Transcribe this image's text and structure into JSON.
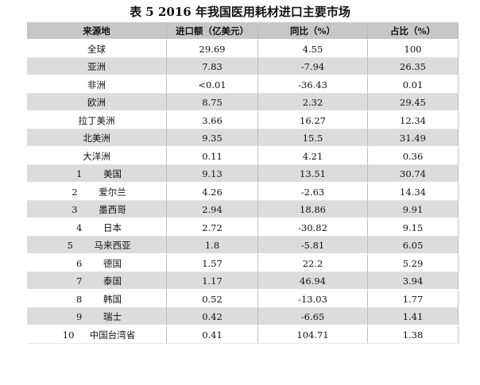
{
  "title": "表 5 2016 年我国医用耗材进口主要市场",
  "headers": [
    "来源地",
    "进口额（亿美元）",
    "同比（%）",
    "占比（%）"
  ],
  "regions": [
    {
      "name": "全球",
      "amount": "29.69",
      "yoy": "4.55",
      "share": "100"
    },
    {
      "name": "亚洲",
      "amount": "7.83",
      "yoy": "-7.94",
      "share": "26.35"
    },
    {
      "name": "非洲",
      "amount": "<0.01",
      "yoy": "-36.43",
      "share": "0.01"
    },
    {
      "name": "欧洲",
      "amount": "8.75",
      "yoy": "2.32",
      "share": "29.45"
    },
    {
      "name": "拉丁美洲",
      "amount": "3.66",
      "yoy": "16.27",
      "share": "12.34"
    },
    {
      "name": "北美洲",
      "amount": "9.35",
      "yoy": "15.5",
      "share": "31.49"
    },
    {
      "name": "大洋洲",
      "amount": "0.11",
      "yoy": "4.21",
      "share": "0.36"
    }
  ],
  "countries": [
    {
      "rank": "1",
      "name": "美国",
      "amount": "9.13",
      "yoy": "13.51",
      "share": "30.74"
    },
    {
      "rank": "2",
      "name": "爱尔兰",
      "amount": "4.26",
      "yoy": "-2.63",
      "share": "14.34"
    },
    {
      "rank": "3",
      "name": "墨西哥",
      "amount": "2.94",
      "yoy": "18.86",
      "share": "9.91"
    },
    {
      "rank": "4",
      "name": "日本",
      "amount": "2.72",
      "yoy": "-30.82",
      "share": "9.15"
    },
    {
      "rank": "5",
      "name": "马来西亚",
      "amount": "1.8",
      "yoy": "-5.81",
      "share": "6.05"
    },
    {
      "rank": "6",
      "name": "德国",
      "amount": "1.57",
      "yoy": "22.2",
      "share": "5.29"
    },
    {
      "rank": "7",
      "name": "泰国",
      "amount": "1.17",
      "yoy": "46.94",
      "share": "3.94"
    },
    {
      "rank": "8",
      "name": "韩国",
      "amount": "0.52",
      "yoy": "-13.03",
      "share": "1.77"
    },
    {
      "rank": "9",
      "name": "瑞士",
      "amount": "0.42",
      "yoy": "-6.65",
      "share": "1.41"
    },
    {
      "rank": "10",
      "name": "中国台湾省",
      "amount": "0.41",
      "yoy": "104.71",
      "share": "1.38"
    }
  ]
}
